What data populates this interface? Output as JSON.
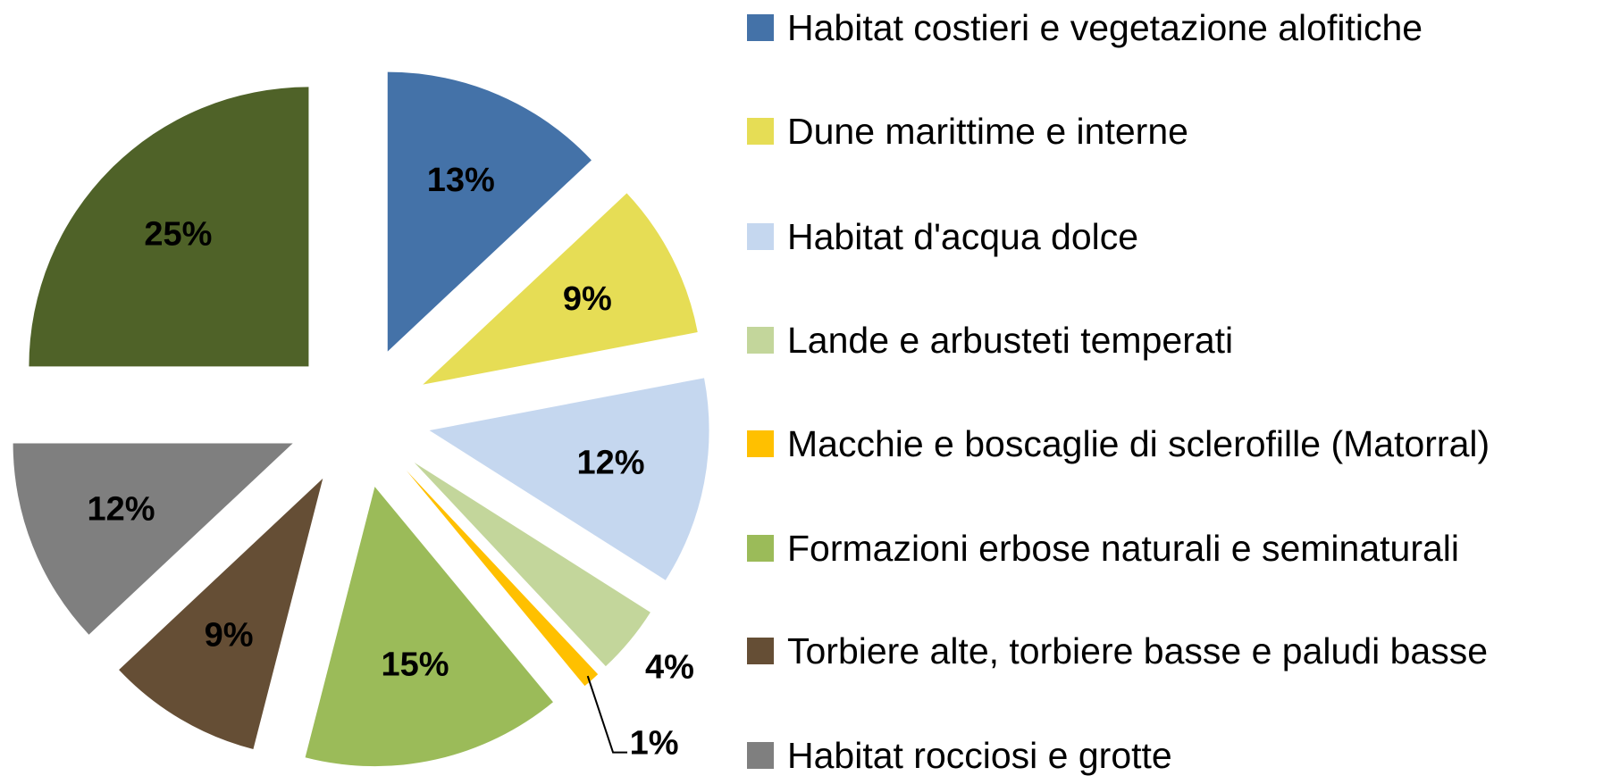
{
  "chart_data": {
    "type": "pie",
    "categories": [
      "Habitat costieri e vegetazione alofitiche",
      "Dune marittime e interne",
      "Habitat d'acqua dolce",
      "Lande e arbusteti temperati",
      "Macchie e boscaglie di sclerofille (Matorral)",
      "Formazioni erbose naturali e seminaturali",
      "Torbiere alte, torbiere basse e paludi basse",
      "Habitat rocciosi e grotte",
      null
    ],
    "values": [
      13,
      9,
      12,
      4,
      1,
      15,
      9,
      12,
      25
    ],
    "value_labels": [
      "13%",
      "9%",
      "12%",
      "4%",
      "1%",
      "15%",
      "9%",
      "12%",
      "25%"
    ],
    "colors": [
      "#4472a8",
      "#e6dd55",
      "#c5d7ef",
      "#c3d69b",
      "#ffc000",
      "#9bbb59",
      "#654e35",
      "#7f7f7f",
      "#4f6228"
    ],
    "legend": "right"
  }
}
